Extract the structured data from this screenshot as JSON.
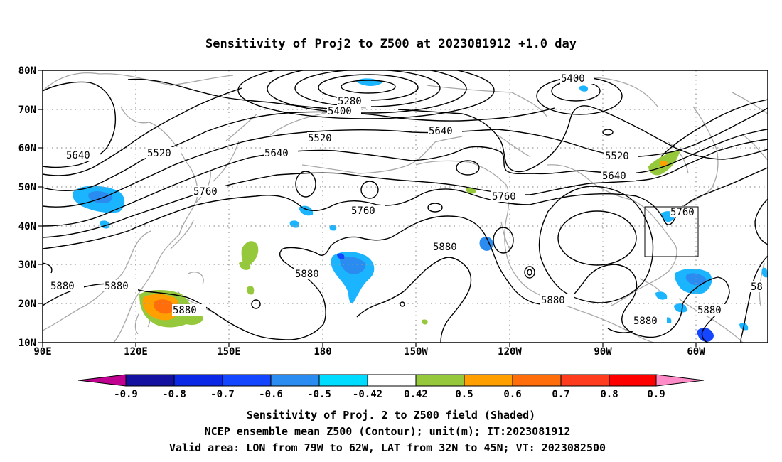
{
  "title": "Sensitivity of Proj2 to Z500 at 2023081912 +1.0 day",
  "map": {
    "lon_labels": [
      "90E",
      "120E",
      "150E",
      "180",
      "150W",
      "120W",
      "90W",
      "60W"
    ],
    "lat_labels": [
      "80N",
      "70N",
      "60N",
      "50N",
      "40N",
      "30N",
      "20N",
      "10N"
    ],
    "contour_labels": [
      "5280",
      "5400",
      "5400",
      "5520",
      "5520",
      "5520",
      "5640",
      "5640",
      "5640",
      "5640",
      "5760",
      "5760",
      "5760",
      "5760",
      "5880",
      "5880",
      "5880",
      "5880",
      "5880",
      "5880",
      "5880",
      "5880",
      "58"
    ],
    "valid_area": {
      "lon": [
        "79W",
        "62W"
      ],
      "lat": [
        "32N",
        "45N"
      ]
    }
  },
  "colorbar": {
    "labels": [
      "-0.9",
      "-0.8",
      "-0.7",
      "-0.6",
      "-0.5",
      "-0.42",
      "0.42",
      "0.5",
      "0.6",
      "0.7",
      "0.8",
      "0.9"
    ],
    "colors": [
      "#c00090",
      "#1410a0",
      "#0a28e6",
      "#1446ff",
      "#2a8cf0",
      "#1ab4ff",
      "#00dcff",
      "#ffffff",
      "#96c83c",
      "#ffa000",
      "#ff6e0a",
      "#ff3c1e",
      "#ff0000",
      "#ff8cc8"
    ]
  },
  "captions": {
    "line1": "Sensitivity of Proj. 2 to Z500 field (Shaded)",
    "line2": "NCEP ensemble mean Z500 (Contour); unit(m); IT:2023081912",
    "line3": "Valid area: LON from 79W to 62W, LAT from 32N to 45N; VT: 2023082500"
  }
}
